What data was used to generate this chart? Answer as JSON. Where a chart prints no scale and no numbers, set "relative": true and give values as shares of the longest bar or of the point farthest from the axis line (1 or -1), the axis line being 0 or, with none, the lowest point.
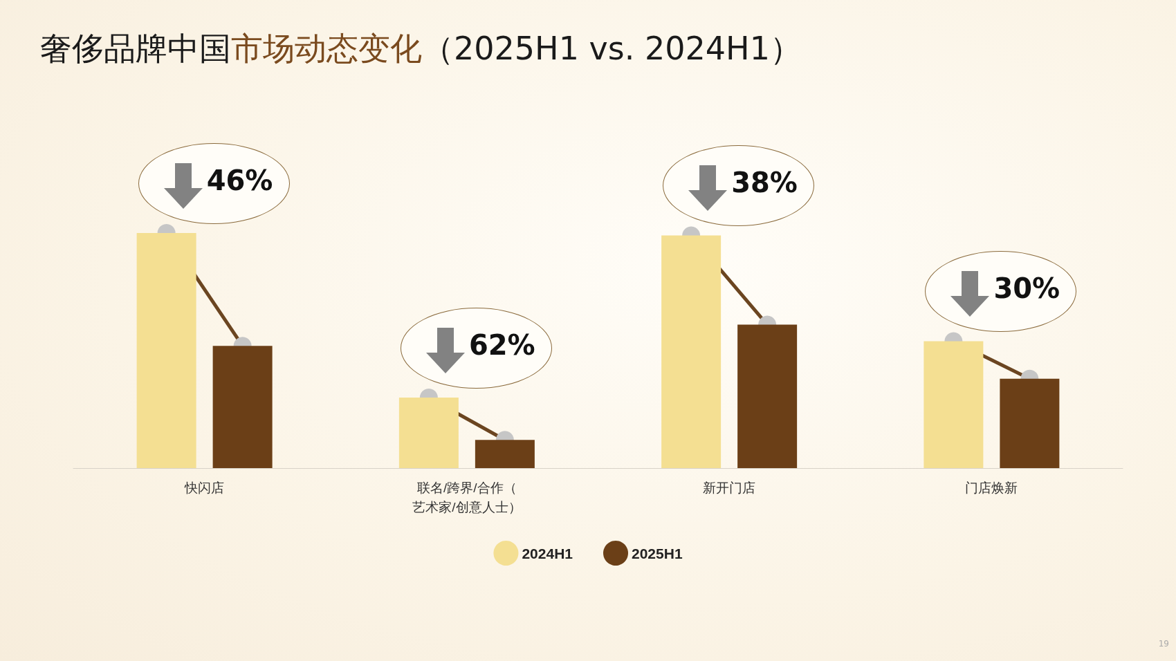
{
  "chart_data": {
    "type": "bar",
    "title": "奢侈品牌中国市场动态变化（2025H1 vs. 2024H1）",
    "relative": true,
    "categories": [
      "快闪店",
      "联名/跨界/合作（艺术家/创意人士）",
      "新开门店",
      "门店焕新"
    ],
    "series": [
      {
        "name": "2024H1",
        "color": "#f4df92",
        "values": [
          1,
          0.3,
          0.99,
          0.54
        ]
      },
      {
        "name": "2025H1",
        "color": "#6b3f17",
        "values": [
          0.52,
          0.12,
          0.61,
          0.38
        ]
      }
    ],
    "legend": "bottom",
    "annotations": [
      "46%",
      "62%",
      "38%",
      "30%",
      "19"
    ]
  }
}
